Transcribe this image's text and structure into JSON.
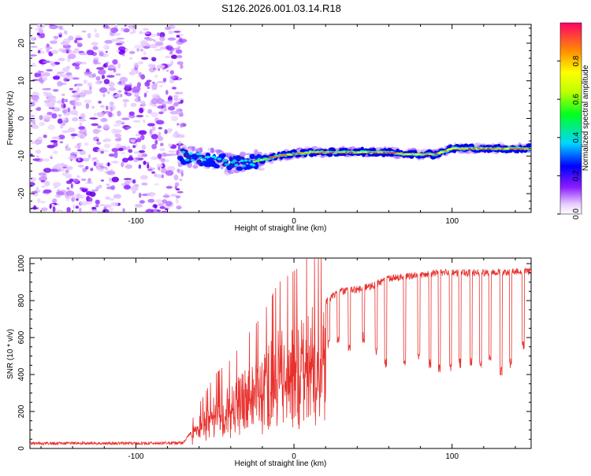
{
  "chart_data": [
    {
      "type": "heatmap",
      "title": "S126.2026.001.03.14.R18",
      "xlabel": "Height of straight line (km)",
      "ylabel": "Frequency (Hz)",
      "xlim": [
        -167,
        150
      ],
      "ylim": [
        -25,
        25
      ],
      "x_ticks": [
        -100,
        0,
        100
      ],
      "y_ticks": [
        -20,
        -10,
        0,
        10,
        20
      ],
      "noise_region_x": [
        -167,
        -70
      ],
      "ridge": {
        "x": [
          -70,
          -60,
          -50,
          -40,
          -30,
          -20,
          -10,
          0,
          10,
          20,
          30,
          40,
          50,
          60,
          70,
          80,
          90,
          100,
          110,
          120,
          130,
          140,
          150
        ],
        "y": [
          -10,
          -10.5,
          -11,
          -12,
          -12,
          -11,
          -10,
          -9.5,
          -9,
          -9,
          -9,
          -9,
          -9,
          -9,
          -9.5,
          -9.5,
          -9.5,
          -8,
          -8,
          -8,
          -8,
          -8,
          -8
        ]
      },
      "colorbar": {
        "label": "Normalized spectral amplitude",
        "range": [
          0,
          1
        ],
        "ticks": [
          0.0,
          0.2,
          0.4,
          0.6,
          0.8
        ]
      }
    },
    {
      "type": "line",
      "xlabel": "Height of straight line (km)",
      "ylabel": "SNR (10 * v/v)",
      "xlim": [
        -167,
        150
      ],
      "ylim": [
        0,
        1030
      ],
      "x_ticks": [
        -100,
        0,
        100
      ],
      "y_ticks": [
        0,
        200,
        400,
        600,
        800,
        1000
      ],
      "color": "#e8302c",
      "envelope": {
        "x": [
          -167,
          -100,
          -70,
          -60,
          -50,
          -40,
          -30,
          -20,
          -10,
          -5,
          0,
          5,
          10,
          15,
          20,
          25,
          30,
          40,
          50,
          60,
          70,
          80,
          90,
          100,
          110,
          120,
          130,
          140,
          150
        ],
        "y": [
          28,
          28,
          30,
          150,
          250,
          300,
          380,
          450,
          560,
          580,
          600,
          620,
          660,
          700,
          790,
          830,
          850,
          860,
          880,
          920,
          930,
          940,
          950,
          950,
          950,
          950,
          955,
          955,
          960
        ]
      },
      "dips": [
        22,
        28,
        35,
        44,
        52,
        58,
        70,
        79,
        86,
        92,
        99,
        105,
        112,
        118,
        124,
        131,
        137,
        145
      ],
      "dip_levels": [
        560,
        600,
        550,
        600,
        530,
        460,
        460,
        500,
        460,
        440,
        440,
        460,
        470,
        460,
        480,
        420,
        460,
        560
      ]
    }
  ]
}
